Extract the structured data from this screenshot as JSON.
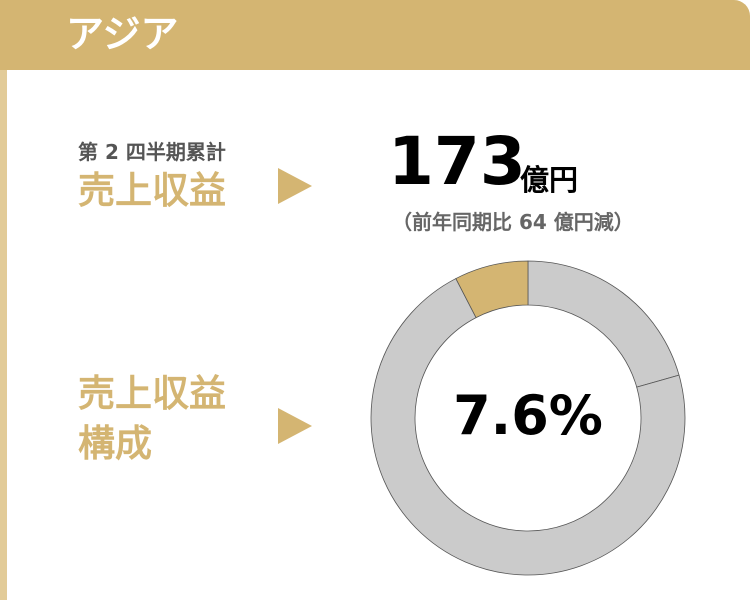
{
  "header": {
    "title": "アジア",
    "color": "#d4b572"
  },
  "revenue": {
    "period_label": "第 2 四半期累計",
    "label": "売上収益",
    "value": "173",
    "unit": "億円",
    "comparison": "（前年同期比 64 億円減）"
  },
  "composition": {
    "label_line1": "売上収益",
    "label_line2": "構成",
    "percent_text": "7.6%"
  },
  "chart_data": {
    "type": "pie",
    "donut": true,
    "slices": [
      {
        "value": 20.6,
        "color": "#cbcbcb",
        "highlight": false
      },
      {
        "value": 71.8,
        "color": "#cbcbcb",
        "highlight": false
      },
      {
        "value": 7.6,
        "color": "#d4b572",
        "highlight": true
      }
    ],
    "center_label": "7.6%"
  }
}
